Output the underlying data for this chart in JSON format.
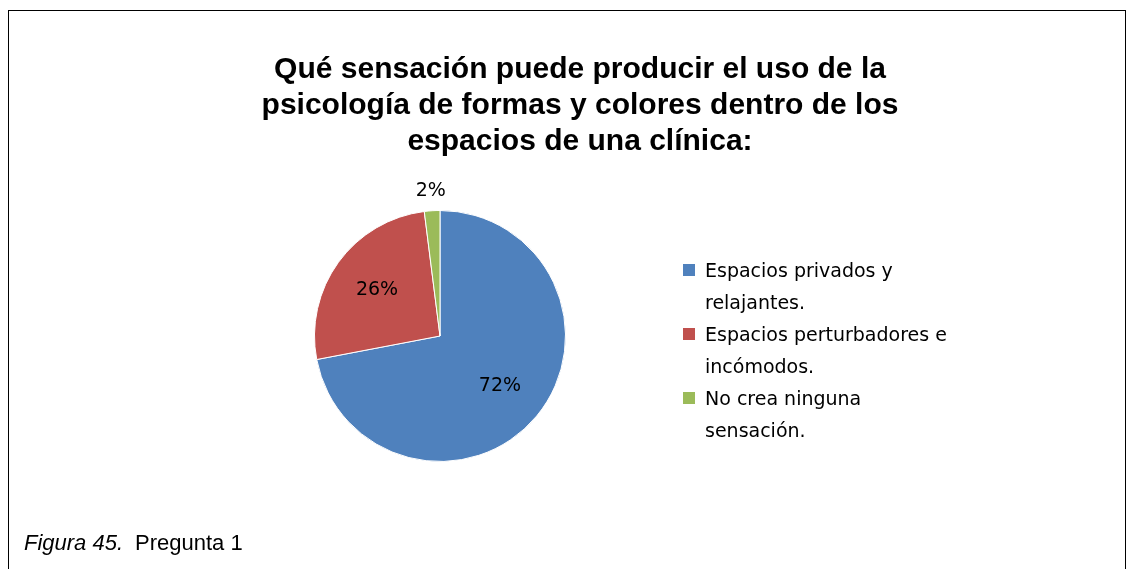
{
  "chart_data": {
    "type": "pie",
    "title": "Qué sensación puede producir el uso de la psicología de formas y colores dentro de los espacios de una clínica:",
    "categories": [
      "Espacios privados y relajantes.",
      "Espacios perturbadores e incómodos.",
      "No crea ninguna sensación."
    ],
    "values": [
      72,
      26,
      2
    ],
    "colors": [
      "#4f81bd",
      "#c0504d",
      "#9bbb59"
    ],
    "value_labels": [
      "72%",
      "26%",
      "2%"
    ],
    "legend": "right",
    "annotations": [
      "Figura 45.",
      "Pregunta 1"
    ]
  }
}
